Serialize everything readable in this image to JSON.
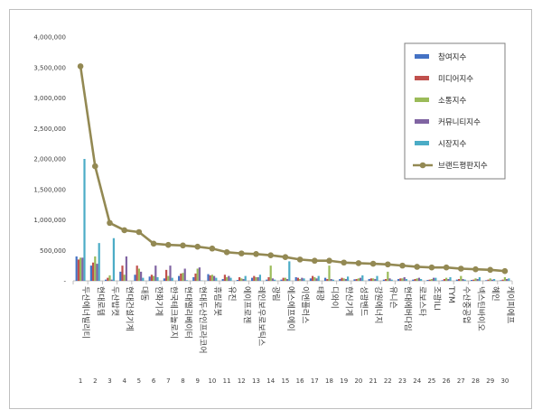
{
  "chart_data": {
    "type": "bar",
    "categories": [
      "두산에너빌리티",
      "현대로템",
      "두산밥캣",
      "현대건설기계",
      "대동",
      "한화기계",
      "한국테크놀로지",
      "현대엘리베이터",
      "현대두산인프라코어",
      "휴림로봇",
      "유진",
      "에이프로젠",
      "레인보우로보틱스",
      "광림",
      "에스에프에이",
      "이엔플러스",
      "태광",
      "디와이",
      "한신기계",
      "성광벤드",
      "강원에너지",
      "유니슨",
      "현대에버다임",
      "로보스타",
      "조광ILI",
      "TYM",
      "수산중공업",
      "넥스틴바이오",
      "혜인",
      "케이피에프"
    ],
    "index_labels": [
      "1",
      "2",
      "3",
      "4",
      "5",
      "6",
      "7",
      "8",
      "9",
      "10",
      "11",
      "12",
      "13",
      "14",
      "15",
      "16",
      "17",
      "18",
      "19",
      "20",
      "21",
      "22",
      "23",
      "24",
      "25",
      "26",
      "27",
      "28",
      "29",
      "30"
    ],
    "ylim": [
      0,
      4000000
    ],
    "yticks": [
      "-",
      "500,000",
      "1,000,000",
      "1,500,000",
      "2,000,000",
      "2,500,000",
      "3,000,000",
      "3,500,000",
      "4,000,000"
    ],
    "series": [
      {
        "name": "참여지수",
        "color": "#4472c4",
        "values": [
          400000,
          250000,
          20000,
          150000,
          100000,
          70000,
          40000,
          80000,
          60000,
          110000,
          30000,
          15000,
          50000,
          20000,
          20000,
          60000,
          40000,
          50000,
          30000,
          25000,
          30000,
          20000,
          30000,
          20000,
          15000,
          10000,
          20000,
          15000,
          10000,
          10000
        ]
      },
      {
        "name": "미디어지수",
        "color": "#c0504d",
        "values": [
          350000,
          300000,
          50000,
          250000,
          250000,
          100000,
          180000,
          120000,
          120000,
          90000,
          100000,
          60000,
          80000,
          60000,
          50000,
          50000,
          80000,
          30000,
          50000,
          30000,
          40000,
          30000,
          40000,
          30000,
          20000,
          30000,
          30000,
          20000,
          20000,
          20000
        ]
      },
      {
        "name": "소통지수",
        "color": "#9bbb59",
        "values": [
          380000,
          400000,
          90000,
          100000,
          200000,
          80000,
          80000,
          130000,
          200000,
          100000,
          60000,
          40000,
          60000,
          250000,
          50000,
          30000,
          60000,
          250000,
          40000,
          40000,
          40000,
          150000,
          40000,
          40000,
          30000,
          50000,
          80000,
          40000,
          40000,
          60000
        ]
      },
      {
        "name": "커뮤니티지수",
        "color": "#8064a2",
        "values": [
          380000,
          280000,
          20000,
          400000,
          150000,
          250000,
          250000,
          200000,
          220000,
          80000,
          80000,
          30000,
          60000,
          40000,
          30000,
          50000,
          40000,
          30000,
          30000,
          50000,
          30000,
          40000,
          60000,
          50000,
          50000,
          30000,
          30000,
          30000,
          20000,
          30000
        ]
      },
      {
        "name": "시장지수",
        "color": "#4bacc6",
        "values": [
          2000000,
          620000,
          700000,
          0,
          50000,
          60000,
          50000,
          10000,
          5000,
          50000,
          50000,
          80000,
          100000,
          20000,
          320000,
          40000,
          80000,
          20000,
          70000,
          90000,
          80000,
          20000,
          30000,
          30000,
          50000,
          60000,
          20000,
          60000,
          30000,
          40000
        ]
      }
    ],
    "line": {
      "name": "브랜드평판지수",
      "color": "#938953",
      "values": [
        3520000,
        1880000,
        950000,
        830000,
        800000,
        610000,
        590000,
        580000,
        560000,
        530000,
        470000,
        450000,
        440000,
        420000,
        390000,
        350000,
        330000,
        330000,
        300000,
        290000,
        280000,
        270000,
        250000,
        230000,
        220000,
        220000,
        200000,
        190000,
        180000,
        160000
      ]
    },
    "legend_position": "top-right",
    "grid": false
  }
}
